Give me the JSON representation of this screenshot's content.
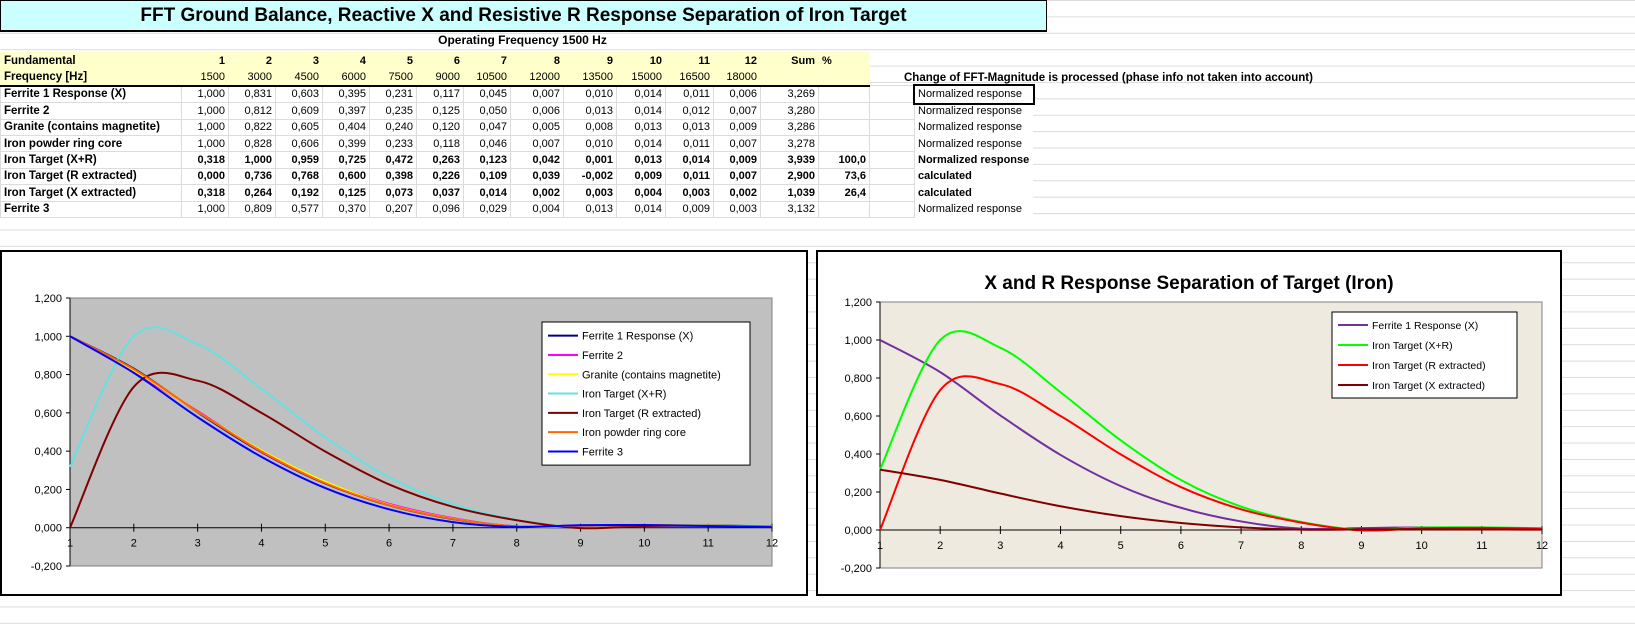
{
  "title": "FFT Ground Balance, Reactive X and Resistive R Response Separation of Iron Target",
  "operating_frequency": "Operating Frequency 1500 Hz",
  "change_note": "Change of FFT-Magnitude is processed (phase info not taken into account)",
  "table": {
    "header1": {
      "label": "Fundamental",
      "cols": [
        "1",
        "2",
        "3",
        "4",
        "5",
        "6",
        "7",
        "8",
        "9",
        "10",
        "11",
        "12"
      ],
      "sum": "Sum",
      "pct": "%"
    },
    "header2": {
      "label": "Frequency [Hz]",
      "cols": [
        "1500",
        "3000",
        "4500",
        "6000",
        "7500",
        "9000",
        "10500",
        "12000",
        "13500",
        "15000",
        "16500",
        "18000"
      ]
    },
    "rows": [
      {
        "label": "Ferrite 1 Response (X)",
        "bold": false,
        "values": [
          "1,000",
          "0,831",
          "0,603",
          "0,395",
          "0,231",
          "0,117",
          "0,045",
          "0,007",
          "0,010",
          "0,014",
          "0,011",
          "0,006"
        ],
        "sum": "3,269",
        "pct": "",
        "note": "Normalized response"
      },
      {
        "label": "Ferrite 2",
        "bold": false,
        "values": [
          "1,000",
          "0,812",
          "0,609",
          "0,397",
          "0,235",
          "0,125",
          "0,050",
          "0,006",
          "0,013",
          "0,014",
          "0,012",
          "0,007"
        ],
        "sum": "3,280",
        "pct": "",
        "note": "Normalized response"
      },
      {
        "label": "Granite (contains magnetite)",
        "bold": false,
        "values": [
          "1,000",
          "0,822",
          "0,605",
          "0,404",
          "0,240",
          "0,120",
          "0,047",
          "0,005",
          "0,008",
          "0,013",
          "0,013",
          "0,009"
        ],
        "sum": "3,286",
        "pct": "",
        "note": "Normalized response"
      },
      {
        "label": "Iron powder ring core",
        "bold": false,
        "values": [
          "1,000",
          "0,828",
          "0,606",
          "0,399",
          "0,233",
          "0,118",
          "0,046",
          "0,007",
          "0,010",
          "0,014",
          "0,011",
          "0,007"
        ],
        "sum": "3,278",
        "pct": "",
        "note": "Normalized response"
      },
      {
        "label": "Iron Target (X+R)",
        "bold": true,
        "values": [
          "0,318",
          "1,000",
          "0,959",
          "0,725",
          "0,472",
          "0,263",
          "0,123",
          "0,042",
          "0,001",
          "0,013",
          "0,014",
          "0,009"
        ],
        "sum": "3,939",
        "pct": "100,0",
        "note": "Normalized response"
      },
      {
        "label": "Iron Target (R extracted)",
        "bold": true,
        "values": [
          "0,000",
          "0,736",
          "0,768",
          "0,600",
          "0,398",
          "0,226",
          "0,109",
          "0,039",
          "-0,002",
          "0,009",
          "0,011",
          "0,007"
        ],
        "sum": "2,900",
        "pct": "73,6",
        "note": "calculated"
      },
      {
        "label": "Iron Target (X extracted)",
        "bold": true,
        "values": [
          "0,318",
          "0,264",
          "0,192",
          "0,125",
          "0,073",
          "0,037",
          "0,014",
          "0,002",
          "0,003",
          "0,004",
          "0,003",
          "0,002"
        ],
        "sum": "1,039",
        "pct": "26,4",
        "note": "calculated"
      },
      {
        "label": "Ferrite 3",
        "bold": false,
        "values": [
          "1,000",
          "0,809",
          "0,577",
          "0,370",
          "0,207",
          "0,096",
          "0,029",
          "0,004",
          "0,013",
          "0,014",
          "0,009",
          "0,003"
        ],
        "sum": "3,132",
        "pct": "",
        "note": "Normalized response"
      }
    ]
  },
  "chart_data": [
    {
      "type": "line",
      "title": "",
      "x": [
        1,
        2,
        3,
        4,
        5,
        6,
        7,
        8,
        9,
        10,
        11,
        12
      ],
      "xlim": [
        1,
        12
      ],
      "ylim": [
        -0.2,
        1.2
      ],
      "yticks": [
        "-0,200",
        "0,000",
        "0,200",
        "0,400",
        "0,600",
        "0,800",
        "1,000",
        "1,200"
      ],
      "xticks": [
        "1",
        "2",
        "3",
        "4",
        "5",
        "6",
        "7",
        "8",
        "9",
        "10",
        "11",
        "12"
      ],
      "legend": "right-center",
      "background": "#c0c0c0",
      "series": [
        {
          "name": "Ferrite 1 Response (X)",
          "color": "#000080",
          "values": [
            1,
            0.831,
            0.603,
            0.395,
            0.231,
            0.117,
            0.045,
            0.007,
            0.01,
            0.014,
            0.011,
            0.006
          ]
        },
        {
          "name": "Ferrite 2",
          "color": "#ff00ff",
          "values": [
            1,
            0.812,
            0.609,
            0.397,
            0.235,
            0.125,
            0.05,
            0.006,
            0.013,
            0.014,
            0.012,
            0.007
          ]
        },
        {
          "name": "Granite (contains magnetite)",
          "color": "#ffff00",
          "values": [
            1,
            0.822,
            0.605,
            0.404,
            0.24,
            0.12,
            0.047,
            0.005,
            0.008,
            0.013,
            0.013,
            0.009
          ]
        },
        {
          "name": "Iron Target (X+R)",
          "color": "#66e0e0",
          "values": [
            0.318,
            1,
            0.959,
            0.725,
            0.472,
            0.263,
            0.123,
            0.042,
            0.001,
            0.013,
            0.014,
            0.009
          ]
        },
        {
          "name": "Iron Target (R extracted)",
          "color": "#800000",
          "values": [
            0,
            0.736,
            0.768,
            0.6,
            0.398,
            0.226,
            0.109,
            0.039,
            -0.002,
            0.009,
            0.011,
            0.007
          ]
        },
        {
          "name": "Iron powder ring core",
          "color": "#ff6600",
          "values": [
            1,
            0.828,
            0.606,
            0.399,
            0.233,
            0.118,
            0.046,
            0.007,
            0.01,
            0.014,
            0.011,
            0.007
          ]
        },
        {
          "name": "Ferrite 3",
          "color": "#0000ff",
          "values": [
            1,
            0.809,
            0.577,
            0.37,
            0.207,
            0.096,
            0.029,
            0.004,
            0.013,
            0.014,
            0.009,
            0.003
          ]
        }
      ]
    },
    {
      "type": "line",
      "title": "X and R Response Separation of Target (Iron)",
      "x": [
        1,
        2,
        3,
        4,
        5,
        6,
        7,
        8,
        9,
        10,
        11,
        12
      ],
      "xlim": [
        1,
        12
      ],
      "ylim": [
        -0.2,
        1.2
      ],
      "yticks": [
        "-0,200",
        "0,000",
        "0,200",
        "0,400",
        "0,600",
        "0,800",
        "1,000",
        "1,200"
      ],
      "xticks": [
        "1",
        "2",
        "3",
        "4",
        "5",
        "6",
        "7",
        "8",
        "9",
        "10",
        "11",
        "12"
      ],
      "legend": "top-right",
      "background": "#eeeadf",
      "series": [
        {
          "name": "Ferrite 1 Response (X)",
          "color": "#7030a0",
          "values": [
            1,
            0.831,
            0.603,
            0.395,
            0.231,
            0.117,
            0.045,
            0.007,
            0.01,
            0.014,
            0.011,
            0.006
          ]
        },
        {
          "name": "Iron Target (X+R)",
          "color": "#00ff00",
          "values": [
            0.318,
            1,
            0.959,
            0.725,
            0.472,
            0.263,
            0.123,
            0.042,
            0.001,
            0.013,
            0.014,
            0.009
          ]
        },
        {
          "name": "Iron Target (R extracted)",
          "color": "#ff0000",
          "values": [
            0,
            0.736,
            0.768,
            0.6,
            0.398,
            0.226,
            0.109,
            0.039,
            -0.002,
            0.009,
            0.011,
            0.007
          ]
        },
        {
          "name": "Iron Target (X extracted)",
          "color": "#800000",
          "values": [
            0.318,
            0.264,
            0.192,
            0.125,
            0.073,
            0.037,
            0.014,
            0.002,
            0.003,
            0.004,
            0.003,
            0.002
          ]
        }
      ]
    }
  ]
}
